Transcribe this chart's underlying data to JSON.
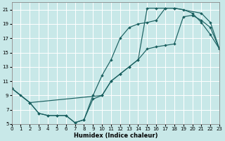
{
  "xlabel": "Humidex (Indice chaleur)",
  "bg_color": "#c8e8e8",
  "grid_color": "#b0d8d8",
  "line_color": "#1a6060",
  "xlim": [
    0,
    23
  ],
  "ylim": [
    5,
    22
  ],
  "xticks": [
    0,
    1,
    2,
    3,
    4,
    5,
    6,
    7,
    8,
    9,
    10,
    11,
    12,
    13,
    14,
    15,
    16,
    17,
    18,
    19,
    20,
    21,
    22,
    23
  ],
  "yticks": [
    5,
    7,
    9,
    11,
    13,
    15,
    17,
    19,
    21
  ],
  "line1_x": [
    0,
    1,
    2,
    3,
    4,
    5,
    6,
    7,
    8,
    9,
    10,
    11,
    12,
    13,
    14,
    15,
    16,
    17,
    18,
    19,
    20,
    21,
    22,
    23
  ],
  "line1_y": [
    10,
    9,
    8,
    6.5,
    6.2,
    6.2,
    6.2,
    5.2,
    5.6,
    9,
    11.8,
    14,
    17,
    18.5,
    19,
    19.2,
    19.5,
    21.2,
    21.2,
    21,
    20.5,
    19.2,
    17.5,
    15.5
  ],
  "line2_x": [
    0,
    2,
    3,
    4,
    5,
    6,
    7,
    8,
    9,
    10,
    11,
    12,
    13,
    14,
    15,
    16,
    17,
    18,
    19,
    20,
    21,
    22,
    23
  ],
  "line2_y": [
    10,
    8,
    6.5,
    6.2,
    6.2,
    6.2,
    5.2,
    5.6,
    8.5,
    9,
    11,
    12,
    13,
    14,
    15.5,
    15.8,
    16,
    16.2,
    20,
    20.2,
    19.5,
    18.5,
    15.5
  ],
  "line3_x": [
    0,
    2,
    10,
    11,
    12,
    13,
    14,
    15,
    16,
    17,
    18,
    21,
    22,
    23
  ],
  "line3_y": [
    10,
    8,
    9,
    11,
    12,
    13,
    14,
    21.2,
    21.2,
    21.2,
    21.2,
    20.5,
    19.2,
    15.5
  ]
}
